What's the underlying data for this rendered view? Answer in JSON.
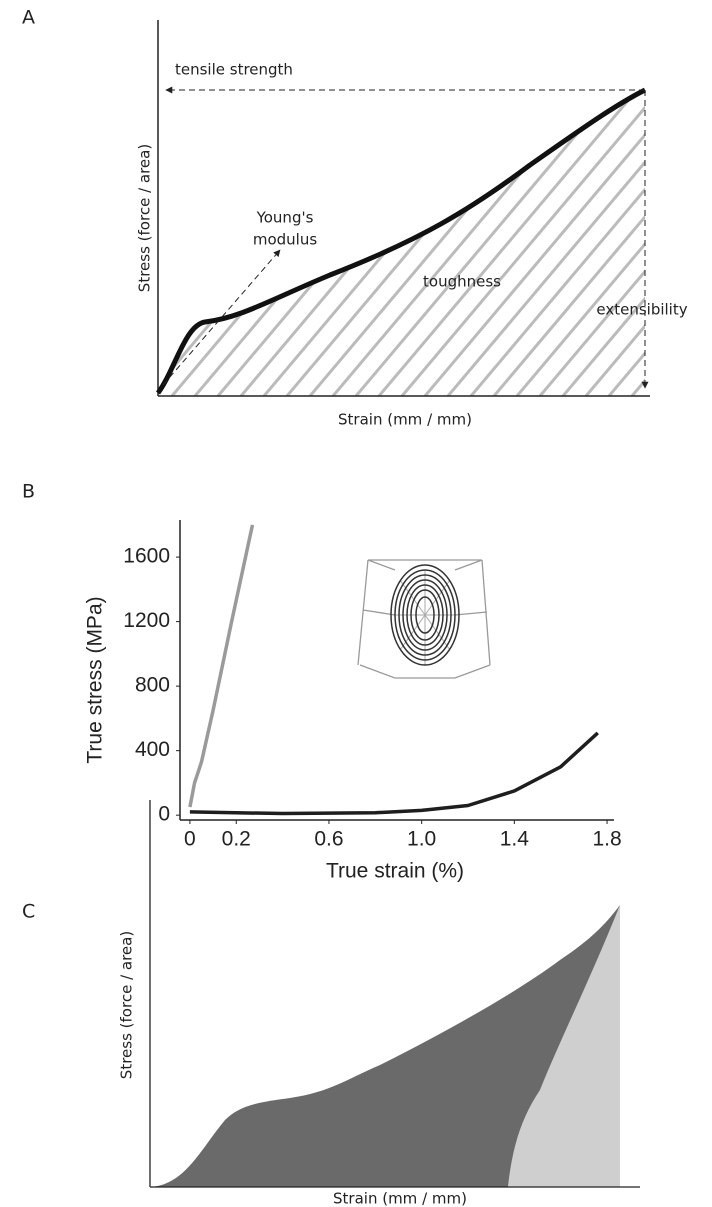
{
  "chart_data": [
    {
      "type": "diagram",
      "panel": "A",
      "xlabel": "Strain (mm / mm)",
      "ylabel": "Stress (force / area)",
      "annotations": {
        "tensile_strength": "tensile strength",
        "youngs_modulus": [
          "Young's",
          "modulus"
        ],
        "toughness": "toughness",
        "extensibility": "extensibility"
      }
    },
    {
      "type": "line",
      "panel": "B",
      "xlabel": "True strain (%)",
      "ylabel": "True stress (MPa)",
      "xlim": [
        -0.06,
        1.83
      ],
      "ylim": [
        -30,
        1830
      ],
      "xticks": [
        0,
        0.2,
        0.6,
        {
          "value": 1,
          "label": "1.0"
        },
        1.4,
        1.8
      ],
      "yticks": [
        0,
        400,
        800,
        1200,
        1600
      ],
      "series": [
        {
          "color": "#9a9a9a",
          "x": [
            0,
            0.02,
            0.05,
            0.1,
            0.18,
            0.27
          ],
          "values": [
            50,
            200,
            330,
            650,
            1200,
            1800
          ]
        },
        {
          "color": "#1e1e1e",
          "x": [
            0,
            0.4,
            0.8,
            1.0,
            1.2,
            1.4,
            1.6,
            1.76
          ],
          "values": [
            20,
            10,
            15,
            30,
            60,
            150,
            300,
            510
          ]
        }
      ]
    },
    {
      "type": "diagram",
      "panel": "C",
      "xlabel": "Strain (mm / mm)",
      "ylabel": "Stress (force / area)"
    }
  ]
}
